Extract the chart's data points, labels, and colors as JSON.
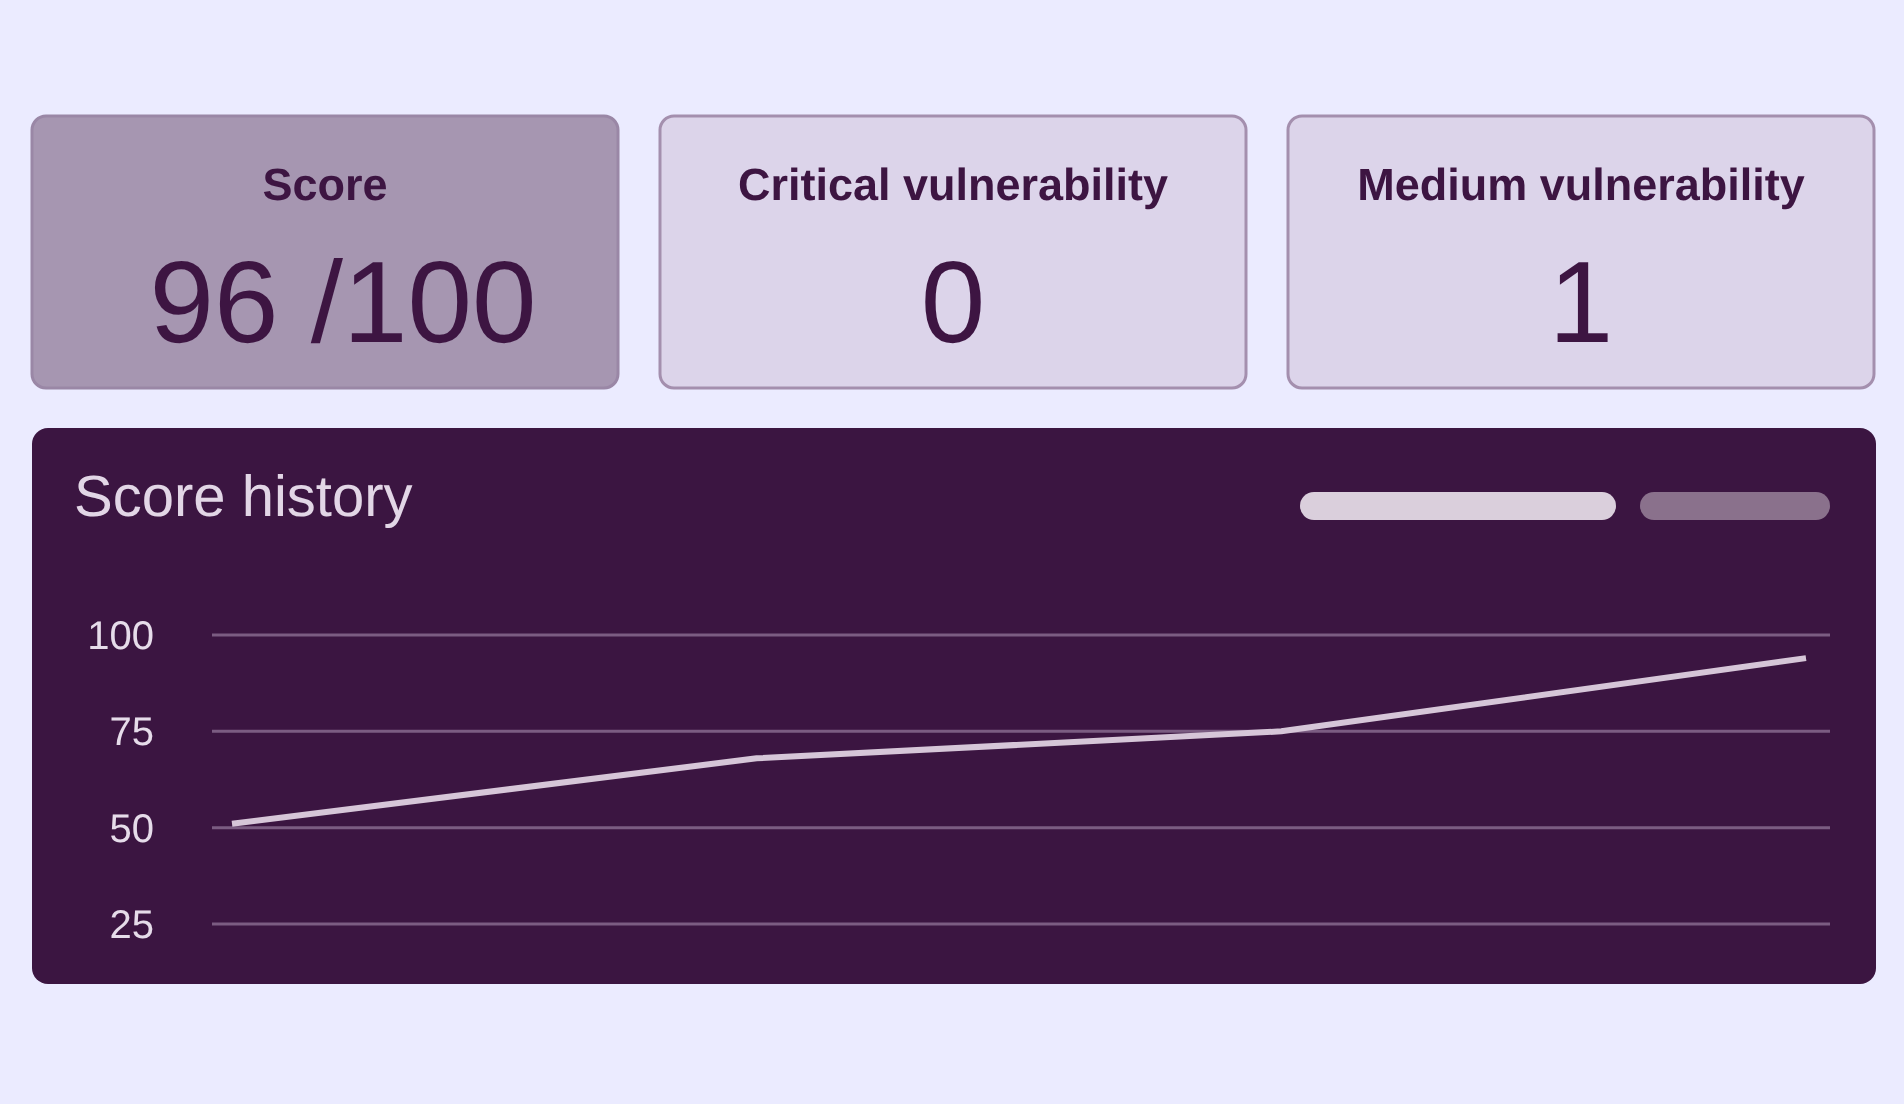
{
  "chart_data": [
    {
      "type": "other",
      "title": "Score",
      "annotations": [
        "96 /100"
      ]
    },
    {
      "type": "other",
      "title": "Critical vulnerability",
      "annotations": [
        "0"
      ]
    },
    {
      "type": "other",
      "title": "Medium vulnerability",
      "annotations": [
        "1"
      ]
    },
    {
      "type": "line",
      "title": "Score history",
      "categories": [
        null,
        null,
        null,
        null
      ],
      "series": [
        {
          "color": "#d6c6d8",
          "values": [
            51,
            68,
            75,
            94
          ]
        }
      ],
      "ylim": [
        25,
        100
      ],
      "yticks": [
        25,
        50,
        75,
        100
      ],
      "grid": "y",
      "tick_labels": "y"
    }
  ]
}
